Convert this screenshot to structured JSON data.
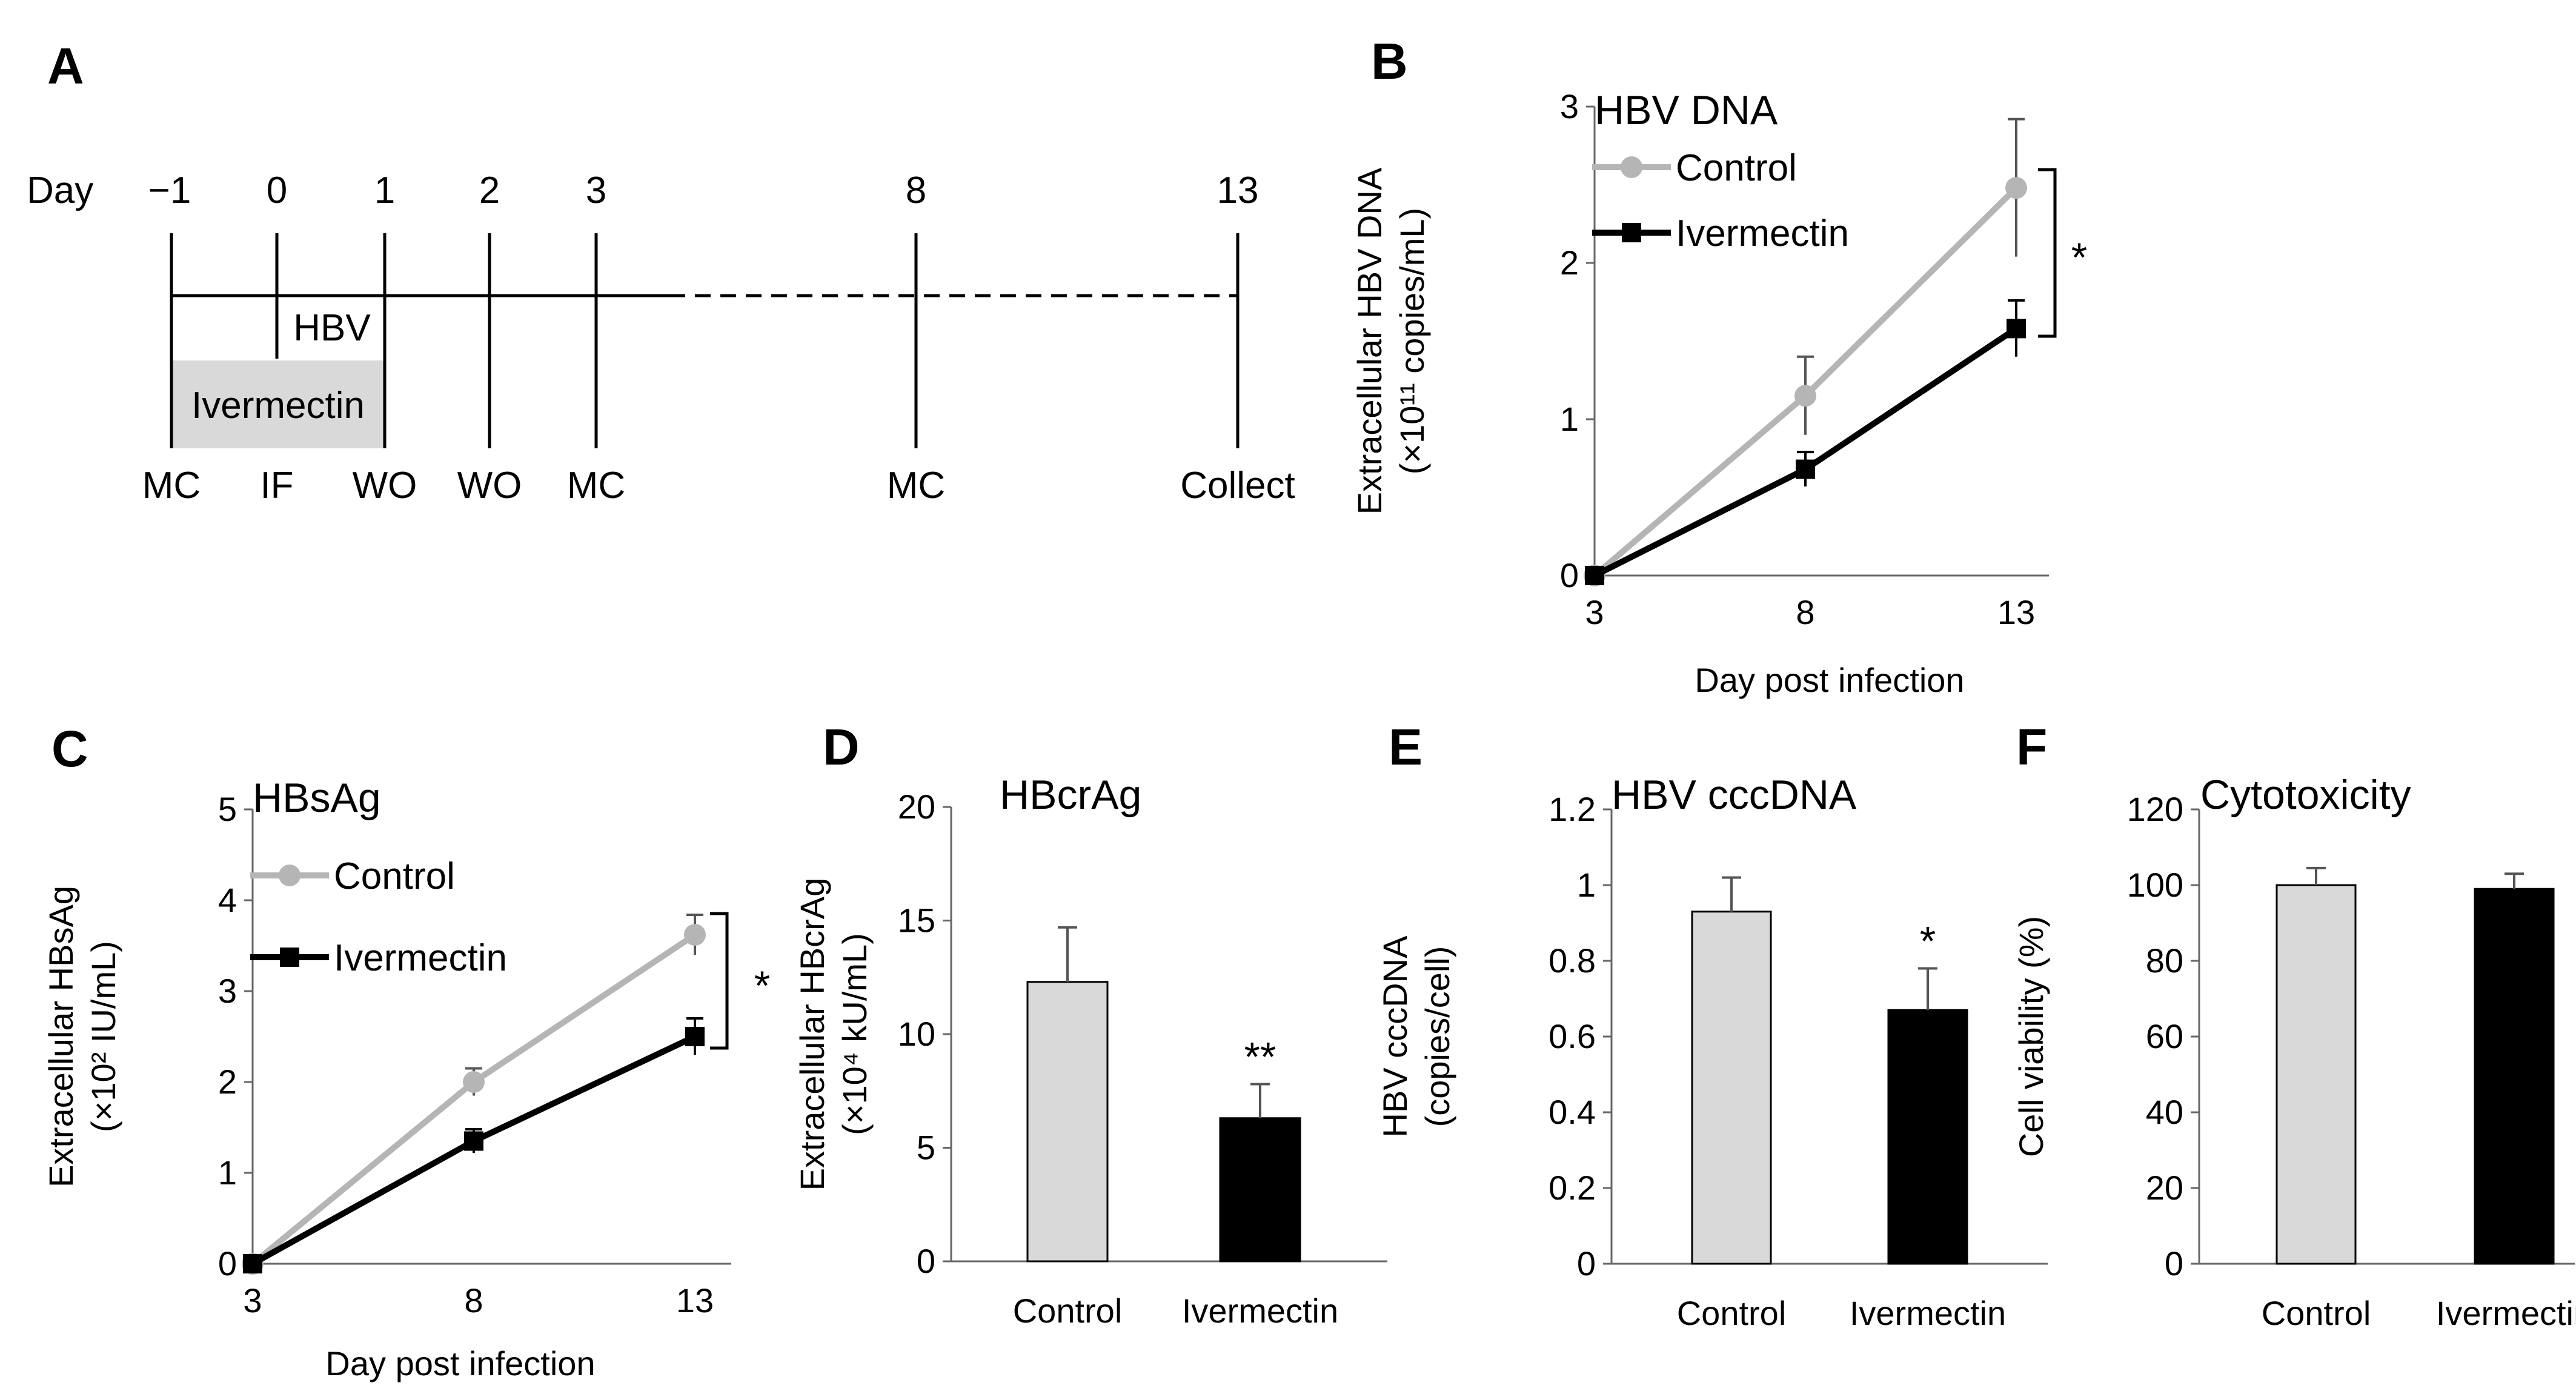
{
  "colors": {
    "control": "#b5b5b5",
    "control_bar": "#d9d9d9",
    "ivermectin": "#000000",
    "shade": "#d9d9d9"
  },
  "timeline": {
    "panel_label": "A",
    "day_label": "Day",
    "days": [
      "−1",
      "0",
      "1",
      "2",
      "3",
      "8",
      "13"
    ],
    "events": [
      "MC",
      "IF",
      "WO",
      "WO",
      "MC",
      "MC",
      "Collect"
    ],
    "hbv_label": "HBV",
    "treatment_label": "Ivermectin"
  },
  "chart_data": [
    {
      "panel": "B",
      "type": "line",
      "title": "HBV DNA",
      "xlabel": "Day post infection",
      "ylabel_line1": "Extracellular HBV DNA",
      "ylabel_line2": "(×10¹¹ copies/mL)",
      "x": [
        3,
        8,
        13
      ],
      "x_tick_labels": [
        "3",
        "8",
        "13"
      ],
      "ylim": [
        0,
        3
      ],
      "y_ticks": [
        0,
        1,
        2,
        3
      ],
      "series": [
        {
          "name": "Control",
          "values": [
            0,
            1.15,
            2.48
          ],
          "errors": [
            0,
            0.25,
            0.44
          ]
        },
        {
          "name": "Ivermectin",
          "values": [
            0,
            0.68,
            1.58
          ],
          "errors": [
            0,
            0.11,
            0.18
          ]
        }
      ],
      "significance": "*"
    },
    {
      "panel": "C",
      "type": "line",
      "title": "HBsAg",
      "xlabel": "Day post infection",
      "ylabel_line1": "Extracellular HBsAg",
      "ylabel_line2": "(×10² IU/mL)",
      "x": [
        3,
        8,
        13
      ],
      "x_tick_labels": [
        "3",
        "8",
        "13"
      ],
      "ylim": [
        0,
        5
      ],
      "y_ticks": [
        0,
        1,
        2,
        3,
        4,
        5
      ],
      "series": [
        {
          "name": "Control",
          "values": [
            0,
            2.0,
            3.62
          ],
          "errors": [
            0,
            0.15,
            0.22
          ]
        },
        {
          "name": "Ivermectin",
          "values": [
            0,
            1.35,
            2.5
          ],
          "errors": [
            0,
            0.13,
            0.2
          ]
        }
      ],
      "significance": "*"
    },
    {
      "panel": "D",
      "type": "bar",
      "title": "HBcrAg",
      "ylabel_line1": "Extracellular HBcrAg",
      "ylabel_line2": "(×10⁴ kU/mL)",
      "categories": [
        "Control",
        "Ivermectin"
      ],
      "values": [
        12.3,
        6.3
      ],
      "errors": [
        2.4,
        1.5
      ],
      "ylim": [
        0,
        20
      ],
      "y_ticks": [
        0,
        5,
        10,
        15,
        20
      ],
      "y_tick_labels": [
        "0",
        "5",
        "10",
        "15",
        "20"
      ],
      "significance": [
        "",
        "**"
      ]
    },
    {
      "panel": "E",
      "type": "bar",
      "title": "HBV cccDNA",
      "ylabel_line1": "HBV cccDNA",
      "ylabel_line2": "(copies/cell)",
      "categories": [
        "Control",
        "Ivermectin"
      ],
      "values": [
        0.93,
        0.67
      ],
      "errors": [
        0.09,
        0.11
      ],
      "ylim": [
        0,
        1.2
      ],
      "y_ticks": [
        0,
        0.2,
        0.4,
        0.6,
        0.8,
        1,
        1.2
      ],
      "y_tick_labels": [
        "0",
        "0.2",
        "0.4",
        "0.6",
        "0.8",
        "1",
        "1.2"
      ],
      "significance": [
        "",
        "*"
      ]
    },
    {
      "panel": "F",
      "type": "bar",
      "title": "Cytotoxicity",
      "ylabel_line1": "Cell viability (%)",
      "ylabel_line2": "",
      "categories": [
        "Control",
        "Ivermectin"
      ],
      "values": [
        100,
        99
      ],
      "errors": [
        4.5,
        4
      ],
      "ylim": [
        0,
        120
      ],
      "y_ticks": [
        0,
        20,
        40,
        60,
        80,
        100,
        120
      ],
      "y_tick_labels": [
        "0",
        "20",
        "40",
        "60",
        "80",
        "100",
        "120"
      ],
      "significance": [
        "",
        ""
      ]
    }
  ]
}
